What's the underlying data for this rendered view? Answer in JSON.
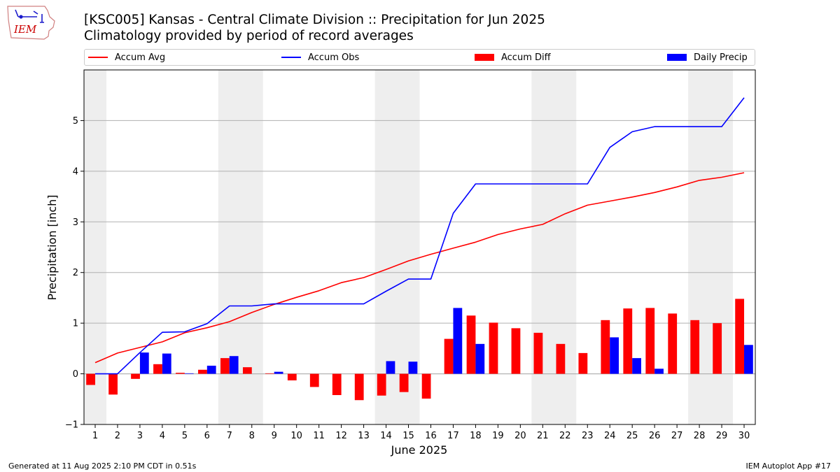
{
  "header": {
    "title": "[KSC005] Kansas - Central Climate Division :: Precipitation for Jun 2025",
    "subtitle": "Climatology provided by period of record averages"
  },
  "logo": {
    "text": "IEM",
    "icon": "iowa-state-outline-icon"
  },
  "footer": {
    "left": "Generated at 11 Aug 2025 2:10 PM CDT in 0.51s",
    "right": "IEM Autoplot App #17"
  },
  "colors": {
    "avg": "#ff0000",
    "obs": "#0000ff",
    "diff": "#ff0000",
    "daily": "#0000ff",
    "weekend_shade": "#eeeeee",
    "grid": "#b0b0b0"
  },
  "chart_data": {
    "type": "bar",
    "xlabel": "June 2025",
    "ylabel": "Precipitation [inch]",
    "ylim": [
      -1,
      6
    ],
    "yticks": [
      -1,
      0,
      1,
      2,
      3,
      4,
      5
    ],
    "ytick_labels": [
      "−1",
      "0",
      "1",
      "2",
      "3",
      "4",
      "5"
    ],
    "grid": "horizontal",
    "legend": {
      "placement": "top",
      "entries": [
        "Accum Avg",
        "Accum Obs",
        "Accum Diff",
        "Daily Precip"
      ]
    },
    "days": [
      1,
      2,
      3,
      4,
      5,
      6,
      7,
      8,
      9,
      10,
      11,
      12,
      13,
      14,
      15,
      16,
      17,
      18,
      19,
      20,
      21,
      22,
      23,
      24,
      25,
      26,
      27,
      28,
      29,
      30
    ],
    "weekend_shading": [
      [
        0.5,
        1.5
      ],
      [
        6.5,
        8.5
      ],
      [
        13.5,
        15.5
      ],
      [
        20.5,
        22.5
      ],
      [
        27.5,
        29.5
      ]
    ],
    "series": [
      {
        "name": "Accum Avg",
        "kind": "line",
        "values": [
          0.22,
          0.41,
          0.52,
          0.63,
          0.81,
          0.91,
          1.03,
          1.21,
          1.37,
          1.51,
          1.64,
          1.8,
          1.9,
          2.06,
          2.23,
          2.36,
          2.48,
          2.6,
          2.75,
          2.86,
          2.95,
          3.16,
          3.33,
          3.41,
          3.49,
          3.58,
          3.69,
          3.82,
          3.88,
          3.97
        ]
      },
      {
        "name": "Accum Obs",
        "kind": "line",
        "values": [
          0.0,
          0.0,
          0.42,
          0.82,
          0.83,
          0.99,
          1.34,
          1.34,
          1.38,
          1.38,
          1.38,
          1.38,
          1.38,
          1.63,
          1.87,
          1.87,
          3.17,
          3.75,
          3.75,
          3.75,
          3.75,
          3.75,
          3.75,
          4.47,
          4.78,
          4.88,
          4.88,
          4.88,
          4.88,
          5.45
        ]
      },
      {
        "name": "Accum Diff",
        "kind": "bar",
        "values": [
          -0.22,
          -0.41,
          -0.1,
          0.19,
          0.02,
          0.08,
          0.31,
          0.13,
          0.01,
          -0.13,
          -0.26,
          -0.42,
          -0.52,
          -0.43,
          -0.36,
          -0.49,
          0.69,
          1.15,
          1.01,
          0.9,
          0.81,
          0.59,
          0.41,
          1.06,
          1.29,
          1.3,
          1.19,
          1.06,
          1.0,
          1.48
        ]
      },
      {
        "name": "Daily Precip",
        "kind": "bar",
        "values": [
          0,
          0,
          0.42,
          0.4,
          0.01,
          0.16,
          0.35,
          0,
          0.04,
          0,
          0,
          0,
          0,
          0.25,
          0.24,
          0,
          1.3,
          0.59,
          0,
          0,
          0,
          0,
          0,
          0.72,
          0.31,
          0.1,
          0,
          0,
          0,
          0.57
        ]
      }
    ]
  }
}
